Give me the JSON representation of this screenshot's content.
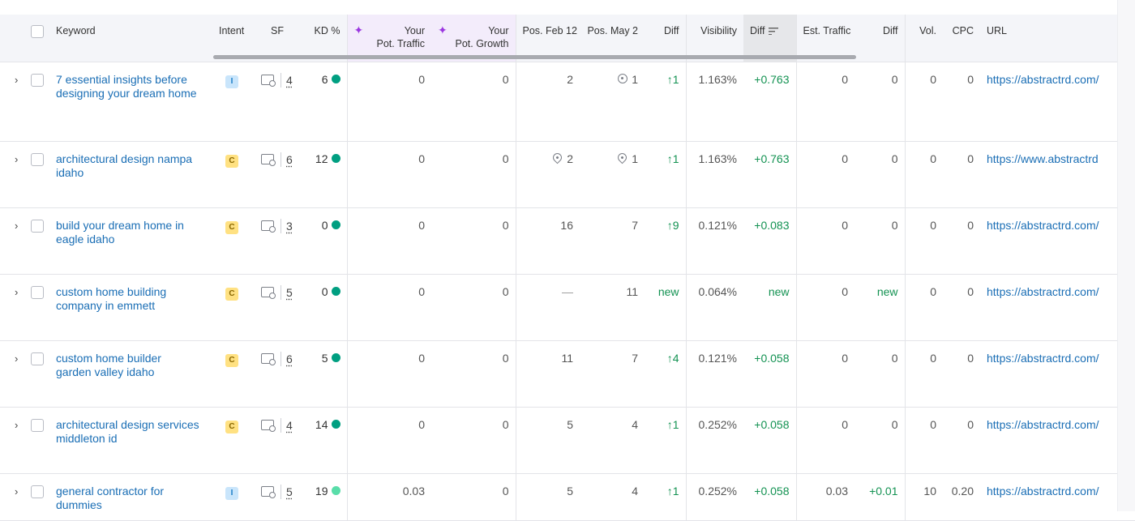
{
  "columns": {
    "keyword": "Keyword",
    "intent": "Intent",
    "sf": "SF",
    "kd": "KD %",
    "pot_traffic_1": "Your",
    "pot_traffic_2": "Pot. Traffic",
    "pot_growth_1": "Your",
    "pot_growth_2": "Pot. Growth",
    "pos_feb": "Pos. Feb 12",
    "pos_may": "Pos. May 2",
    "diff": "Diff",
    "visibility": "Visibility",
    "vis_diff": "Diff",
    "est_traffic": "Est. Traffic",
    "traffic_diff": "Diff",
    "vol": "Vol.",
    "cpc": "CPC",
    "url": "URL"
  },
  "rows": [
    {
      "keyword": "7 essential insights before designing your dream home",
      "intent": "I",
      "sf": "4",
      "kd": "6",
      "kd_color": "#009f81",
      "pot_traffic": "0",
      "pot_growth": "0",
      "pos_feb": "2",
      "pos_may": "1",
      "diff": "↑1",
      "visibility": "1.163%",
      "vis_diff": "+0.763",
      "est_traffic": "0",
      "traffic_diff": "0",
      "vol": "0",
      "cpc": "0",
      "url": "https://abstractrd.com/"
    },
    {
      "keyword": "architectural design nampa idaho",
      "intent": "C",
      "sf": "6",
      "kd": "12",
      "kd_color": "#009f81",
      "pot_traffic": "0",
      "pot_growth": "0",
      "pos_feb": "2",
      "pos_may": "1",
      "diff": "↑1",
      "visibility": "1.163%",
      "vis_diff": "+0.763",
      "est_traffic": "0",
      "traffic_diff": "0",
      "vol": "0",
      "cpc": "0",
      "url": "https://www.abstractrd"
    },
    {
      "keyword": "build your dream home in eagle idaho",
      "intent": "C",
      "sf": "3",
      "kd": "0",
      "kd_color": "#009f81",
      "pot_traffic": "0",
      "pot_growth": "0",
      "pos_feb": "16",
      "pos_may": "7",
      "diff": "↑9",
      "visibility": "0.121%",
      "vis_diff": "+0.083",
      "est_traffic": "0",
      "traffic_diff": "0",
      "vol": "0",
      "cpc": "0",
      "url": "https://abstractrd.com/"
    },
    {
      "keyword": "custom home building company in emmett",
      "intent": "C",
      "sf": "5",
      "kd": "0",
      "kd_color": "#009f81",
      "pot_traffic": "0",
      "pot_growth": "0",
      "pos_feb": "—",
      "pos_may": "11",
      "diff": "new",
      "visibility": "0.064%",
      "vis_diff": "new",
      "est_traffic": "0",
      "traffic_diff": "new",
      "vol": "0",
      "cpc": "0",
      "url": "https://abstractrd.com/"
    },
    {
      "keyword": "custom home builder garden valley idaho",
      "intent": "C",
      "sf": "6",
      "kd": "5",
      "kd_color": "#009f81",
      "pot_traffic": "0",
      "pot_growth": "0",
      "pos_feb": "11",
      "pos_may": "7",
      "diff": "↑4",
      "visibility": "0.121%",
      "vis_diff": "+0.058",
      "est_traffic": "0",
      "traffic_diff": "0",
      "vol": "0",
      "cpc": "0",
      "url": "https://abstractrd.com/"
    },
    {
      "keyword": "architectural design services middleton id",
      "intent": "C",
      "sf": "4",
      "kd": "14",
      "kd_color": "#009f81",
      "pot_traffic": "0",
      "pot_growth": "0",
      "pos_feb": "5",
      "pos_may": "4",
      "diff": "↑1",
      "visibility": "0.252%",
      "vis_diff": "+0.058",
      "est_traffic": "0",
      "traffic_diff": "0",
      "vol": "0",
      "cpc": "0",
      "url": "https://abstractrd.com/"
    },
    {
      "keyword": "general contractor for dummies",
      "intent": "I",
      "sf": "5",
      "kd": "19",
      "kd_color": "#59dda9",
      "pot_traffic": "0.03",
      "pot_growth": "0",
      "pos_feb": "5",
      "pos_may": "4",
      "diff": "↑1",
      "visibility": "0.252%",
      "vis_diff": "+0.058",
      "est_traffic": "0.03",
      "traffic_diff": "+0.01",
      "vol": "10",
      "cpc": "0.20",
      "url": "https://abstractrd.com/"
    }
  ]
}
